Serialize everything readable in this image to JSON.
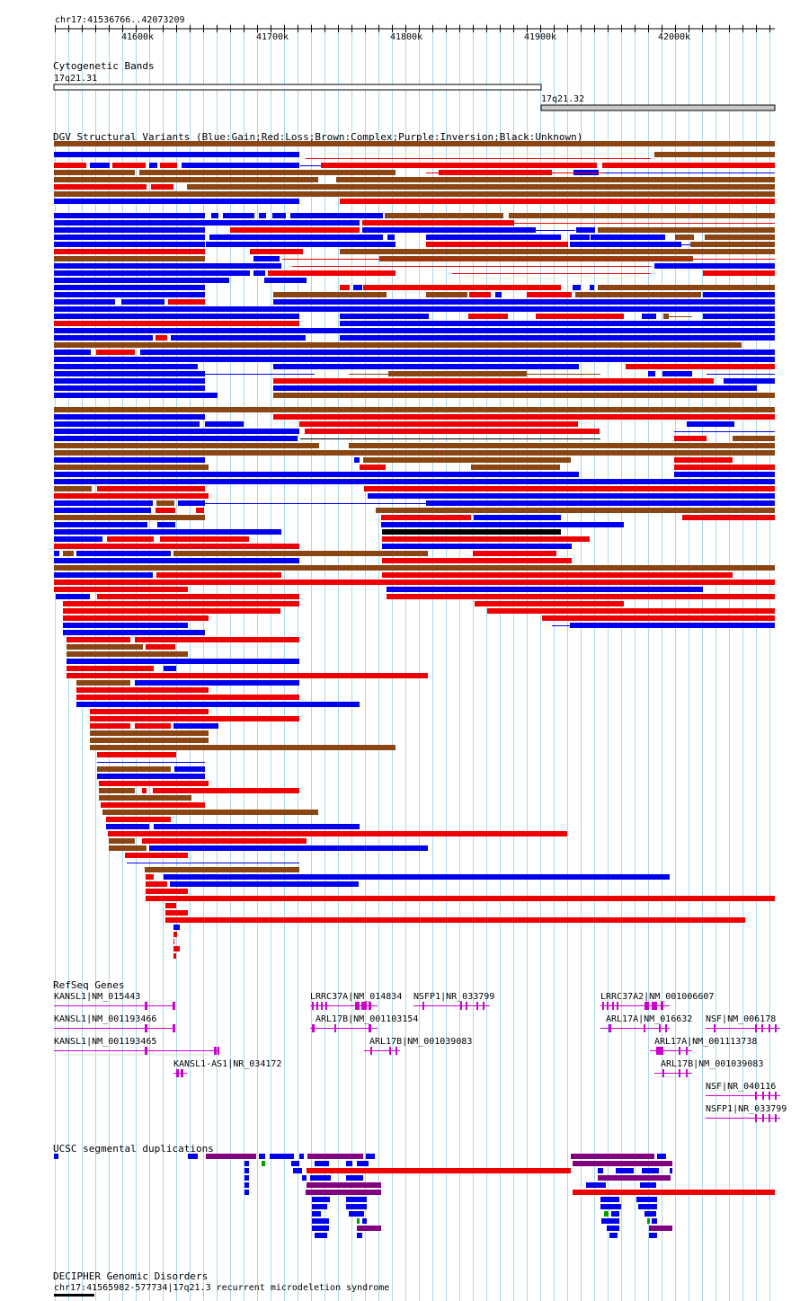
{
  "colors": {
    "gain": "#0000ee",
    "loss": "#ee0000",
    "complex": "#8b4513",
    "inversion": "#800080",
    "unknown": "#000000",
    "gene": "#cc00cc",
    "grid": "#a8d8ee",
    "band_fill_1": "#ffffff",
    "band_fill_2": "#c8c8c8",
    "segdup_purple": "#800080",
    "segdup_green": "#00a000"
  },
  "ruler": {
    "position": "chr17:41536766..42073209",
    "ticks": [
      "41600k",
      "41700k",
      "41800k",
      "41900k",
      "42000k"
    ]
  },
  "tracks": {
    "cytoband_title": "Cytogenetic Bands",
    "band1": "17q21.31",
    "band2": "17q21.32",
    "dgv_title": "DGV Structural Variants (Blue:Gain;Red:Loss;Brown:Complex;Purple:Inversion;Black:Unknown)",
    "refseq_title": "RefSeq Genes",
    "segdup_title": "UCSC segmental duplications",
    "decipher_title": "DECIPHER Genomic Disorders",
    "decipher_item": "chr17:41565982-577734|17q21.3 recurrent microdeletion syndrome"
  },
  "genes": [
    {
      "label": "KANSL1|NM_015443"
    },
    {
      "label": "KANSL1|NM_001193466"
    },
    {
      "label": "KANSL1|NM_001193465"
    },
    {
      "label": "KANSL1-AS1|NR_034172"
    },
    {
      "label": "LRRC37A|NM_014834"
    },
    {
      "label": "NSFP1|NR_033799"
    },
    {
      "label": "ARL17B|NM_001103154"
    },
    {
      "label": "ARL17B|NM_001039083"
    },
    {
      "label": "LRRC37A2|NM_001006607"
    },
    {
      "label": "ARL17A|NM_016632"
    },
    {
      "label": "NSF|NM_006178"
    },
    {
      "label": "ARL17A|NM_001113738"
    },
    {
      "label": "ARL17B|NM_001039083"
    },
    {
      "label": "NSF|NR_040116"
    },
    {
      "label": "NSFP1|NR_033799"
    }
  ]
}
